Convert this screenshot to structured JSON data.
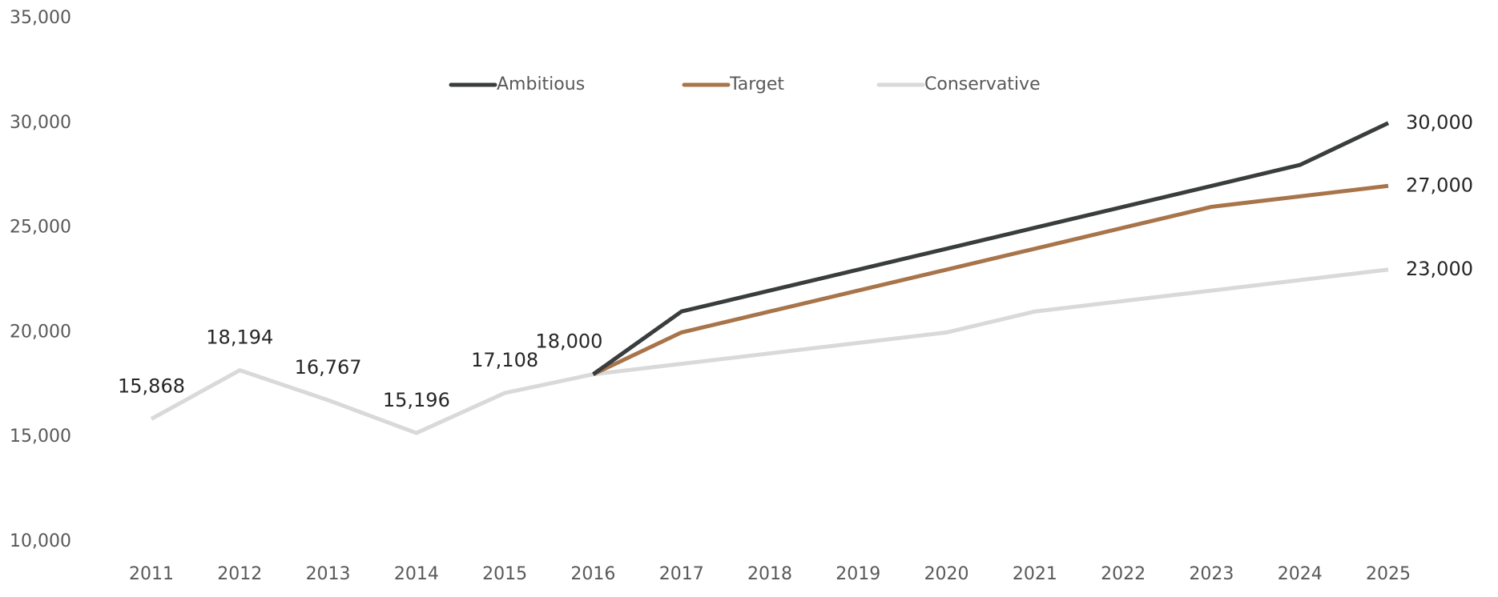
{
  "chart_data": {
    "type": "line",
    "categories": [
      "2011",
      "2012",
      "2013",
      "2014",
      "2015",
      "2016",
      "2017",
      "2018",
      "2019",
      "2020",
      "2021",
      "2022",
      "2023",
      "2024",
      "2025"
    ],
    "series": [
      {
        "name": "Ambitious",
        "color": "#3a3d3d",
        "values": [
          null,
          null,
          null,
          null,
          null,
          18000,
          21000,
          22000,
          23000,
          24000,
          25000,
          26000,
          27000,
          28000,
          30000
        ],
        "value_labels": [
          null,
          null,
          null,
          null,
          null,
          null,
          null,
          null,
          null,
          null,
          null,
          null,
          null,
          null,
          "30,000"
        ]
      },
      {
        "name": "Target",
        "color": "#a8744a",
        "values": [
          null,
          null,
          null,
          null,
          null,
          18000,
          20000,
          21000,
          22000,
          23000,
          24000,
          25000,
          26000,
          26500,
          27000
        ],
        "value_labels": [
          null,
          null,
          null,
          null,
          null,
          null,
          null,
          null,
          null,
          null,
          null,
          null,
          null,
          null,
          "27,000"
        ]
      },
      {
        "name": "Conservative",
        "color": "#d9d9d9",
        "values": [
          15868,
          18194,
          16767,
          15196,
          17108,
          18000,
          18500,
          19000,
          19500,
          20000,
          21000,
          21500,
          22000,
          22500,
          23000
        ],
        "value_labels": [
          "15,868",
          "18,194",
          "16,767",
          "15,196",
          "17,108",
          "18,000",
          null,
          null,
          null,
          null,
          null,
          null,
          null,
          null,
          "23,000"
        ]
      }
    ],
    "ylim": [
      10000,
      35000
    ],
    "yticks": [
      {
        "value": 10000,
        "label": "10,000"
      },
      {
        "value": 15000,
        "label": "15,000"
      },
      {
        "value": 20000,
        "label": "20,000"
      },
      {
        "value": 25000,
        "label": "25,000"
      },
      {
        "value": 30000,
        "label": "30,000"
      },
      {
        "value": 35000,
        "label": "35,000"
      }
    ],
    "grid": false,
    "legend": "top"
  }
}
